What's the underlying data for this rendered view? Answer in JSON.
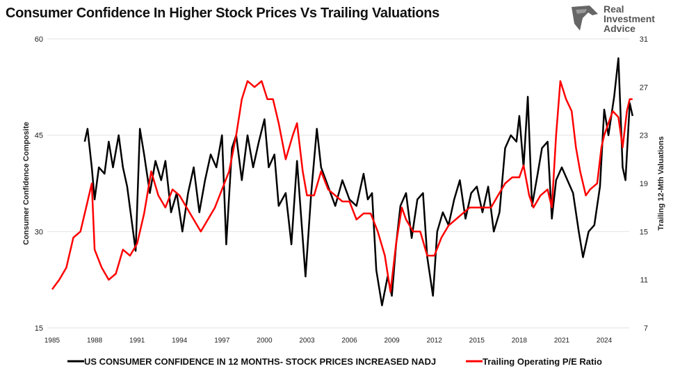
{
  "chart_data": {
    "type": "line",
    "title": "Consumer Confidence In Higher Stock Prices Vs Trailing Valuations",
    "ylabel": "Consumer Confidence Composite",
    "y2label": "Trailing 12-Mth Valuations",
    "xlim": [
      1985,
      2026
    ],
    "ylim": [
      15,
      60
    ],
    "y2lim": [
      7,
      31
    ],
    "x_ticks": [
      "1985",
      "1988",
      "1991",
      "1994",
      "1997",
      "2000",
      "2003",
      "2006",
      "2009",
      "2012",
      "2015",
      "2018",
      "2021",
      "2024"
    ],
    "y_ticks": [
      "60",
      "45",
      "30",
      "15"
    ],
    "y2_ticks": [
      "31",
      "27",
      "23",
      "19",
      "15",
      "11",
      "7"
    ],
    "grid": "horizontal",
    "legend": "bottom",
    "series": [
      {
        "name": "US CONSUMER CONFIDENCE IN 12 MONTHS- STOCK PRICES INCREASED NADJ",
        "axis": "left",
        "color": "#000000",
        "x": [
          1987.3,
          1987.5,
          1987.8,
          1988,
          1988.3,
          1988.7,
          1989,
          1989.3,
          1989.7,
          1990,
          1990.3,
          1990.6,
          1990.9,
          1991.2,
          1991.5,
          1991.9,
          1992.3,
          1992.7,
          1993,
          1993.4,
          1993.8,
          1994.2,
          1994.6,
          1995,
          1995.4,
          1995.8,
          1996.2,
          1996.6,
          1997,
          1997.3,
          1997.7,
          1998,
          1998.4,
          1998.8,
          1999.2,
          1999.6,
          2000,
          2000.3,
          2000.7,
          2001,
          2001.5,
          2001.9,
          2002.3,
          2002.6,
          2002.9,
          2003.3,
          2003.7,
          2004,
          2004.5,
          2005,
          2005.5,
          2006,
          2006.5,
          2007,
          2007.3,
          2007.6,
          2007.9,
          2008.3,
          2008.7,
          2009,
          2009.3,
          2009.6,
          2010,
          2010.4,
          2010.8,
          2011.2,
          2011.5,
          2011.9,
          2012.2,
          2012.6,
          2013,
          2013.4,
          2013.8,
          2014.2,
          2014.6,
          2015,
          2015.4,
          2015.8,
          2016.2,
          2016.6,
          2017,
          2017.4,
          2017.8,
          2018,
          2018.3,
          2018.6,
          2018.9,
          2019.3,
          2019.6,
          2020,
          2020.3,
          2020.6,
          2021,
          2021.4,
          2021.8,
          2022.2,
          2022.5,
          2022.9,
          2023.3,
          2023.7,
          2024,
          2024.3,
          2024.7,
          2025,
          2025.3,
          2025.5,
          2025.8,
          2026
        ],
        "y": [
          44,
          46,
          40,
          35,
          40,
          39,
          44,
          40,
          45,
          40,
          37,
          32,
          27,
          46,
          42,
          36,
          41,
          38,
          41,
          33,
          36,
          30,
          36,
          40,
          33,
          38,
          42,
          40,
          45,
          28,
          43,
          45,
          38,
          45,
          40,
          44,
          47.5,
          40,
          42,
          34,
          36,
          28,
          41,
          32,
          23,
          36,
          46,
          40,
          37,
          34,
          38,
          35,
          34,
          39,
          35,
          36,
          24,
          18.5,
          23,
          20,
          28,
          34,
          36,
          29,
          35,
          36,
          26,
          20,
          30,
          33,
          31,
          35,
          38,
          32,
          36,
          37,
          33,
          37,
          30,
          33,
          43,
          45,
          44,
          48,
          40,
          51,
          34,
          39,
          43,
          44,
          32,
          38,
          40,
          38,
          36,
          30,
          26,
          30,
          31,
          37,
          49,
          45,
          51,
          57,
          40,
          38,
          50,
          48
        ]
      },
      {
        "name": "Trailing Operating P/E Ratio",
        "axis": "right",
        "color": "#ff0000",
        "x": [
          1985,
          1985.5,
          1986,
          1986.5,
          1987,
          1987.4,
          1987.8,
          1988,
          1988.5,
          1989,
          1989.5,
          1990,
          1990.5,
          1991,
          1991.5,
          1992,
          1992.5,
          1993,
          1993.5,
          1994,
          1994.5,
          1995,
          1995.5,
          1996,
          1996.5,
          1997,
          1997.5,
          1998,
          1998.4,
          1998.8,
          1999.3,
          1999.8,
          2000.2,
          2000.6,
          2001,
          2001.5,
          2002,
          2002.3,
          2002.7,
          2003,
          2003.5,
          2004,
          2004.5,
          2005,
          2005.5,
          2006,
          2006.5,
          2007,
          2007.5,
          2008,
          2008.5,
          2008.9,
          2009.3,
          2009.7,
          2010,
          2010.5,
          2011,
          2011.5,
          2012,
          2012.5,
          2013,
          2013.5,
          2014,
          2014.5,
          2015,
          2015.5,
          2016,
          2016.5,
          2017,
          2017.5,
          2018,
          2018.3,
          2018.7,
          2019,
          2019.5,
          2020,
          2020.3,
          2020.6,
          2020.9,
          2021.3,
          2021.7,
          2022,
          2022.3,
          2022.7,
          2023,
          2023.5,
          2023.8,
          2024,
          2024.3,
          2024.6,
          2025,
          2025.3,
          2025.6,
          2025.8,
          2026
        ],
        "y": [
          10.2,
          11,
          12,
          14.5,
          15,
          17,
          19,
          13.5,
          12,
          11,
          11.5,
          13.5,
          13,
          14,
          16.5,
          20,
          18,
          17,
          18.5,
          18,
          17,
          16,
          15,
          16,
          17,
          18.5,
          20,
          23,
          26,
          27.5,
          27,
          27.5,
          26,
          26,
          24,
          21,
          23,
          24,
          20,
          18,
          18,
          20,
          18.5,
          18,
          17.5,
          17.5,
          16,
          16.5,
          16.5,
          15,
          13,
          10,
          14,
          17,
          16,
          15,
          15,
          13,
          13,
          14.5,
          15.5,
          16,
          16.5,
          17,
          17,
          17,
          17,
          18,
          19,
          19.5,
          19.5,
          20.5,
          18,
          17,
          18,
          18.5,
          17,
          23,
          27.5,
          26,
          25,
          22,
          20,
          18,
          18.5,
          19,
          22,
          23,
          24,
          25,
          24.5,
          22,
          25,
          26,
          26
        ]
      }
    ]
  },
  "logo": {
    "text": "Real Investment Advice"
  }
}
